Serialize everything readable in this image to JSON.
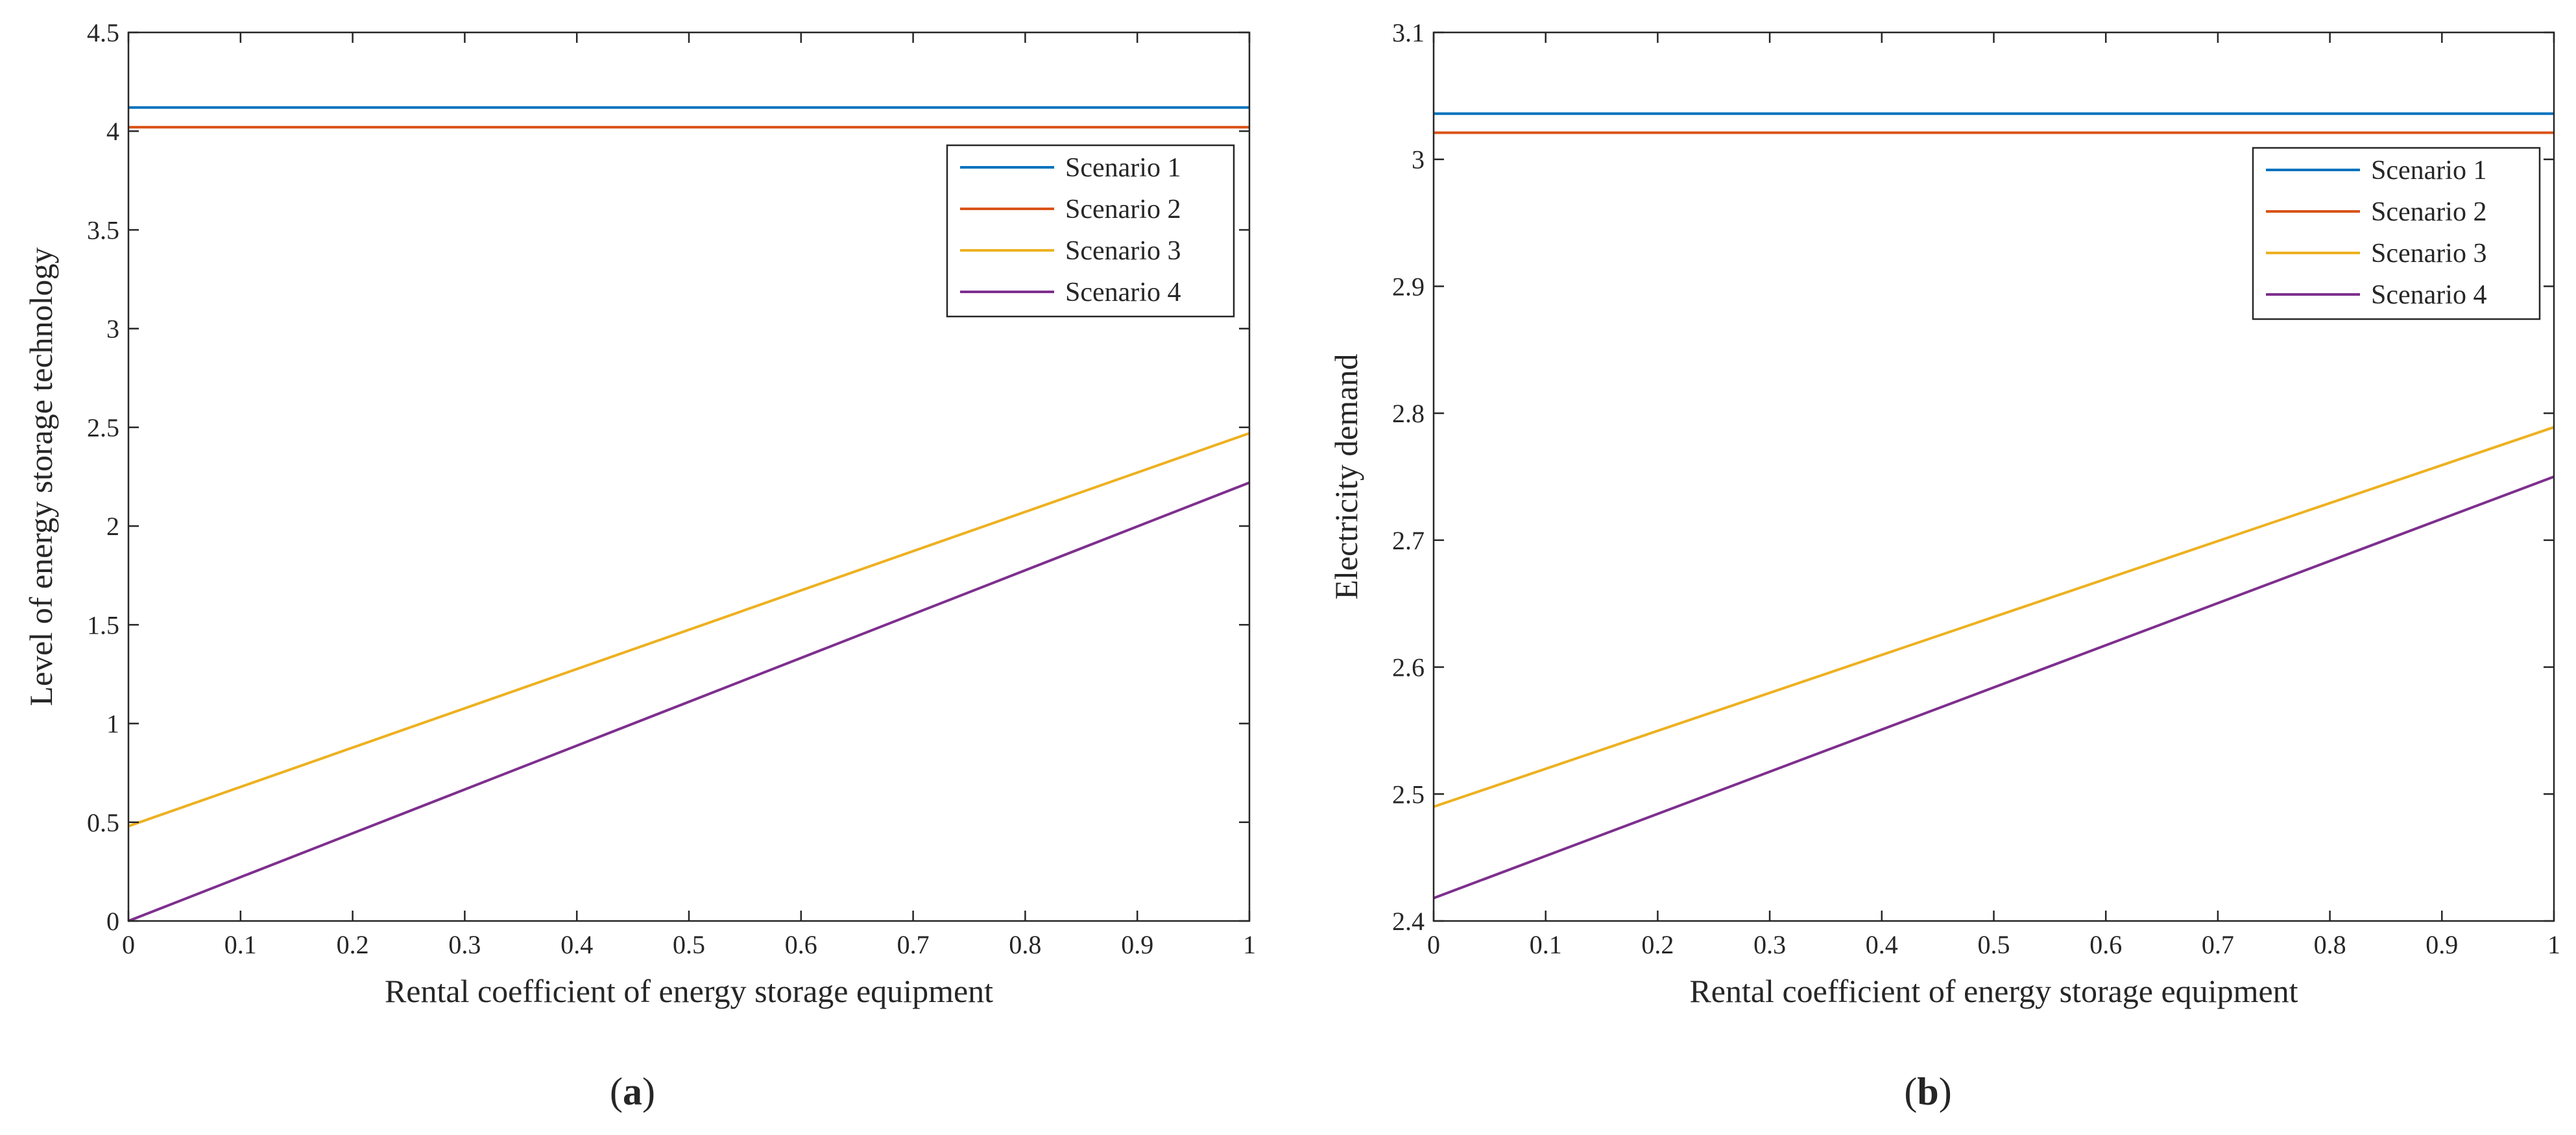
{
  "colors": {
    "scenario1": "#0072BD",
    "scenario2": "#D95319",
    "scenario3": "#EDB120",
    "scenario4": "#7E2F8E",
    "axis": "#262626"
  },
  "chart_data": [
    {
      "type": "line",
      "panel_label": "a",
      "xlabel": "Rental coefficient of energy storage equipment",
      "ylabel": "Level of energy storage technology",
      "xlim": [
        0,
        1
      ],
      "ylim": [
        0,
        4.5
      ],
      "xticks": [
        "0",
        "0.1",
        "0.2",
        "0.3",
        "0.4",
        "0.5",
        "0.6",
        "0.7",
        "0.8",
        "0.9",
        "1"
      ],
      "yticks": [
        "0",
        "0.5",
        "1",
        "1.5",
        "2",
        "2.5",
        "3",
        "3.5",
        "4",
        "4.5"
      ],
      "xtick_values": [
        0,
        0.1,
        0.2,
        0.3,
        0.4,
        0.5,
        0.6,
        0.7,
        0.8,
        0.9,
        1
      ],
      "ytick_values": [
        0,
        0.5,
        1,
        1.5,
        2,
        2.5,
        3,
        3.5,
        4,
        4.5
      ],
      "grid": false,
      "legend_position": "top-right",
      "series": [
        {
          "name": "Scenario 1",
          "color_key": "scenario1",
          "x": [
            0,
            1
          ],
          "y": [
            4.12,
            4.12
          ]
        },
        {
          "name": "Scenario 2",
          "color_key": "scenario2",
          "x": [
            0,
            1
          ],
          "y": [
            4.02,
            4.02
          ]
        },
        {
          "name": "Scenario 3",
          "color_key": "scenario3",
          "x": [
            0,
            1
          ],
          "y": [
            0.48,
            2.47
          ]
        },
        {
          "name": "Scenario 4",
          "color_key": "scenario4",
          "x": [
            0,
            1
          ],
          "y": [
            0.0,
            2.22
          ]
        }
      ]
    },
    {
      "type": "line",
      "panel_label": "b",
      "xlabel": "Rental coefficient of energy storage equipment",
      "ylabel": "Electricity demand",
      "xlim": [
        0,
        1
      ],
      "ylim": [
        2.4,
        3.1
      ],
      "xticks": [
        "0",
        "0.1",
        "0.2",
        "0.3",
        "0.4",
        "0.5",
        "0.6",
        "0.7",
        "0.8",
        "0.9",
        "1"
      ],
      "yticks": [
        "2.4",
        "2.5",
        "2.6",
        "2.7",
        "2.8",
        "2.9",
        "3",
        "3.1"
      ],
      "xtick_values": [
        0,
        0.1,
        0.2,
        0.3,
        0.4,
        0.5,
        0.6,
        0.7,
        0.8,
        0.9,
        1
      ],
      "ytick_values": [
        2.4,
        2.5,
        2.6,
        2.7,
        2.8,
        2.9,
        3.0,
        3.1
      ],
      "grid": false,
      "legend_position": "top-right",
      "series": [
        {
          "name": "Scenario 1",
          "color_key": "scenario1",
          "x": [
            0,
            1
          ],
          "y": [
            3.036,
            3.036
          ]
        },
        {
          "name": "Scenario 2",
          "color_key": "scenario2",
          "x": [
            0,
            1
          ],
          "y": [
            3.021,
            3.021
          ]
        },
        {
          "name": "Scenario 3",
          "color_key": "scenario3",
          "x": [
            0,
            1
          ],
          "y": [
            2.49,
            2.789
          ]
        },
        {
          "name": "Scenario 4",
          "color_key": "scenario4",
          "x": [
            0,
            1
          ],
          "y": [
            2.418,
            2.75
          ]
        }
      ]
    }
  ]
}
